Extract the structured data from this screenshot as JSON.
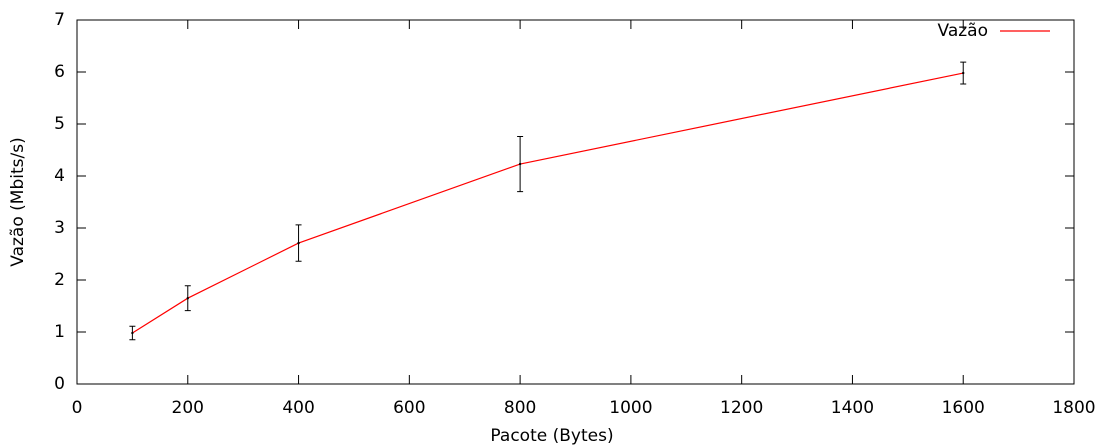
{
  "chart_data": {
    "type": "line",
    "x_label": "Pacote (Bytes)",
    "y_label": "Vazão (Mbits/s)",
    "x": [
      100,
      200,
      400,
      800,
      1600
    ],
    "series": [
      {
        "name": "Vazão",
        "color": "#ff0000",
        "values": [
          0.98,
          1.65,
          2.71,
          4.23,
          5.98
        ],
        "errors": [
          0.13,
          0.24,
          0.35,
          0.53,
          0.21
        ]
      }
    ],
    "error_color": "#000000",
    "xlim": [
      0,
      1800
    ],
    "xticks": [
      0,
      200,
      400,
      600,
      800,
      1000,
      1200,
      1400,
      1600,
      1800
    ],
    "ylim": [
      0,
      7
    ],
    "yticks": [
      0,
      1,
      2,
      3,
      4,
      5,
      6,
      7
    ],
    "legend": "top-right"
  }
}
